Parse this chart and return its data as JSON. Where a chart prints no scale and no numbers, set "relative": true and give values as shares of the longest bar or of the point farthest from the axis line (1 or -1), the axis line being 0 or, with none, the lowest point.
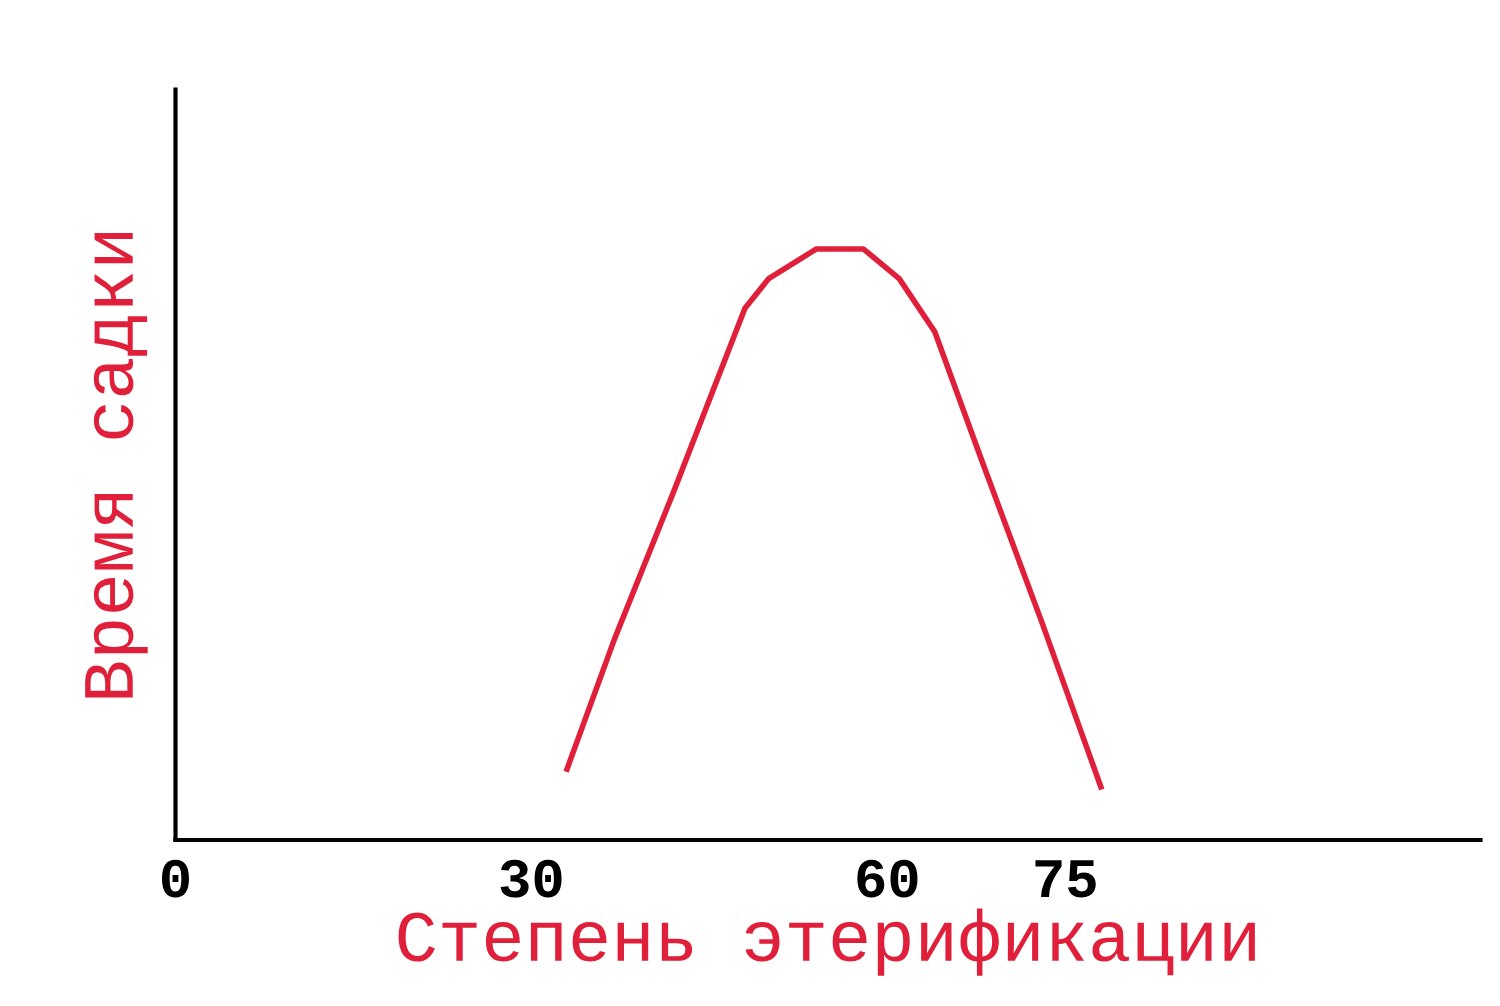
{
  "chart_data": {
    "type": "line",
    "xlabel": "Степень этерификации",
    "ylabel": "Время садки",
    "relative": true,
    "x": [
      33,
      37,
      42,
      48,
      50,
      54,
      58,
      61,
      64,
      68,
      73,
      78
    ],
    "series": [
      {
        "color": "#e0203a",
        "values": [
          0.12,
          0.34,
          0.59,
          0.9,
          0.95,
          1,
          1,
          0.95,
          0.86,
          0.64,
          0.37,
          0.09
        ]
      }
    ],
    "xlim": [
      0,
      110
    ],
    "xticks": [
      0,
      30,
      60,
      75
    ],
    "grid": false,
    "legend": false,
    "marker": "none",
    "line_style": "solid"
  }
}
